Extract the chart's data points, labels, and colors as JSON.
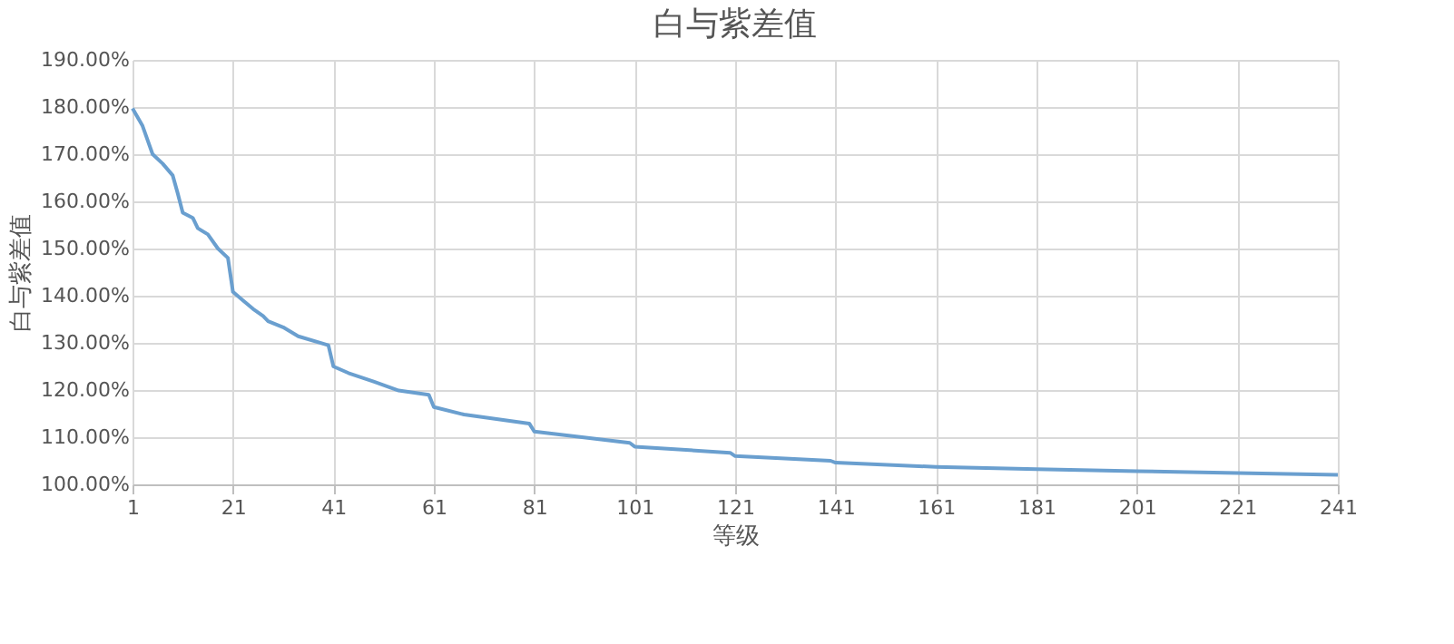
{
  "chart_data": {
    "type": "line",
    "title": "白与紫差值",
    "xlabel": "等级",
    "ylabel": "白与紫差值",
    "x": [
      1,
      3,
      5,
      7,
      9,
      10,
      11,
      13,
      14,
      16,
      18,
      20,
      21,
      23,
      25,
      27,
      28,
      31,
      34,
      40,
      41,
      44,
      49,
      54,
      60,
      61,
      67,
      80,
      81,
      100,
      101,
      120,
      121,
      140,
      141,
      161,
      181,
      201,
      221,
      241
    ],
    "series": [
      {
        "color": "#6a9fcf",
        "values": [
          179.7,
          176,
          170,
          168,
          165.5,
          161.7,
          157.6,
          156.5,
          154.3,
          153,
          150,
          148,
          140.8,
          139,
          137.2,
          135.7,
          134.6,
          133.3,
          131.4,
          129.5,
          125,
          123.6,
          121.8,
          119.9,
          119,
          116.4,
          114.8,
          112.9,
          111.2,
          108.8,
          108,
          106.7,
          106,
          105,
          104.6,
          103.7,
          103.2,
          102.8,
          102.4,
          102.0
        ]
      }
    ],
    "xlim": [
      1,
      241
    ],
    "xticks": [
      1,
      21,
      41,
      61,
      81,
      101,
      121,
      141,
      161,
      181,
      201,
      221,
      241
    ],
    "ylim": [
      100,
      190
    ],
    "yticks": [
      {
        "value": 100,
        "label": "100.00%"
      },
      {
        "value": 110,
        "label": "110.00%"
      },
      {
        "value": 120,
        "label": "120.00%"
      },
      {
        "value": 130,
        "label": "130.00%"
      },
      {
        "value": 140,
        "label": "140.00%"
      },
      {
        "value": 150,
        "label": "150.00%"
      },
      {
        "value": 160,
        "label": "160.00%"
      },
      {
        "value": 170,
        "label": "170.00%"
      },
      {
        "value": 180,
        "label": "180.00%"
      },
      {
        "value": 190,
        "label": "190.00%"
      }
    ],
    "grid": true,
    "marker": "none",
    "line_style": "solid"
  }
}
